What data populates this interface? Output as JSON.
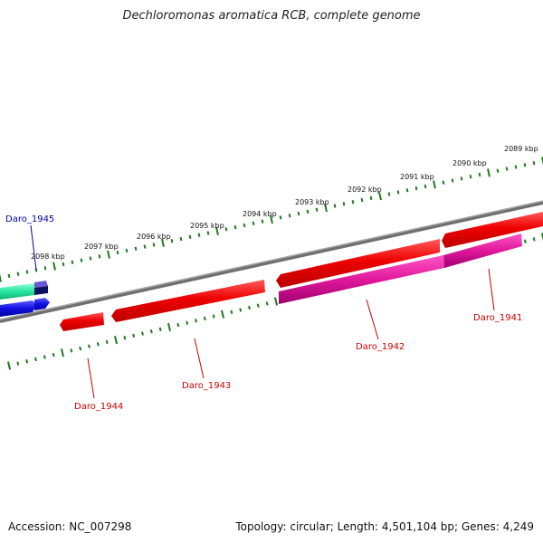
{
  "title": "Dechloromonas aromatica RCB, complete genome",
  "footer": {
    "accession": "Accession: NC_007298",
    "topology": "Topology: circular; Length: 4,501,104 bp; Genes: 4,249"
  },
  "colors": {
    "backbone": "#7a7a7a",
    "tick": "#1e7a1e",
    "gene_red": "#ee0000",
    "gene_magenta": "#e0189a",
    "gene_green": "#27e6a0",
    "gene_blue": "#1010e0",
    "gene_navy": "#101060",
    "label_red": "#cc0000",
    "label_blue": "#0000aa"
  },
  "scale": {
    "unit": "kbp",
    "ticks": [
      {
        "kbp": 2089,
        "label": "2089 kbp"
      },
      {
        "kbp": 2090,
        "label": "2090 kbp"
      },
      {
        "kbp": 2091,
        "label": "2091 kbp"
      },
      {
        "kbp": 2092,
        "label": "2092 kbp"
      },
      {
        "kbp": 2093,
        "label": "2093 kbp"
      },
      {
        "kbp": 2094,
        "label": "2094 kbp"
      },
      {
        "kbp": 2095,
        "label": "2095 kbp"
      },
      {
        "kbp": 2096,
        "label": "2096 kbp"
      },
      {
        "kbp": 2097,
        "label": "2097 kbp"
      },
      {
        "kbp": 2098,
        "label": "2098 kbp"
      }
    ]
  },
  "genes": [
    {
      "id": "Daro_1941",
      "label": "Daro_1941",
      "strand": "reverse",
      "color": "red"
    },
    {
      "id": "Daro_1942",
      "label": "Daro_1942",
      "strand": "reverse",
      "color": "red"
    },
    {
      "id": "Daro_1943",
      "label": "Daro_1943",
      "strand": "reverse",
      "color": "red"
    },
    {
      "id": "Daro_1944",
      "label": "Daro_1944",
      "strand": "reverse",
      "color": "red"
    },
    {
      "id": "Daro_1945",
      "label": "Daro_1945",
      "strand": "forward",
      "color": "blue"
    }
  ]
}
